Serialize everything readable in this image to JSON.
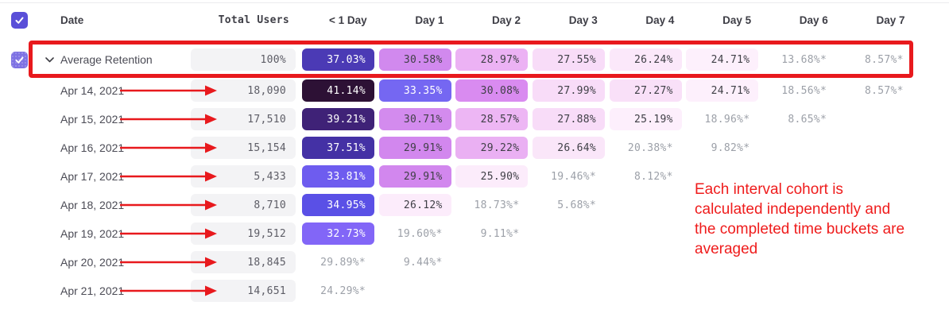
{
  "table": {
    "columns": [
      "Date",
      "Total Users",
      "< 1 Day",
      "Day 1",
      "Day 2",
      "Day 3",
      "Day 4",
      "Day 5",
      "Day 6",
      "Day 7"
    ],
    "rows": [
      {
        "label": "Average Retention",
        "kind": "average",
        "checked": true,
        "expanded": true,
        "total": "100%",
        "cells": [
          {
            "v": "37.03%",
            "bg": "#4b3ab5",
            "fg": "#ffffff"
          },
          {
            "v": "30.58%",
            "bg": "#d189ee",
            "fg": "#3f3f46"
          },
          {
            "v": "28.97%",
            "bg": "#ecb2f4",
            "fg": "#3f3f46"
          },
          {
            "v": "27.55%",
            "bg": "#f8dcf8",
            "fg": "#3f3f46"
          },
          {
            "v": "26.24%",
            "bg": "#fbe8fa",
            "fg": "#3f3f46"
          },
          {
            "v": "24.71%",
            "bg": "#fdf0fc",
            "fg": "#3f3f46"
          },
          {
            "v": "13.68%*"
          },
          {
            "v": "8.57%*"
          }
        ]
      },
      {
        "label": "Apr 14, 2021",
        "total": "18,090",
        "cells": [
          {
            "v": "41.14%",
            "bg": "#2d1135",
            "fg": "#ffffff"
          },
          {
            "v": "33.35%",
            "bg": "#7567f2",
            "fg": "#ffffff"
          },
          {
            "v": "30.08%",
            "bg": "#d98bf0",
            "fg": "#3f3f46"
          },
          {
            "v": "27.99%",
            "bg": "#f8dcf8",
            "fg": "#3f3f46"
          },
          {
            "v": "27.27%",
            "bg": "#f9e0f8",
            "fg": "#3f3f46"
          },
          {
            "v": "24.71%",
            "bg": "#fdf0fc",
            "fg": "#3f3f46"
          },
          {
            "v": "18.56%*"
          },
          {
            "v": "8.57%*"
          }
        ]
      },
      {
        "label": "Apr 15, 2021",
        "total": "17,510",
        "cells": [
          {
            "v": "39.21%",
            "bg": "#3f2277",
            "fg": "#ffffff"
          },
          {
            "v": "30.71%",
            "bg": "#d38bee",
            "fg": "#3f3f46"
          },
          {
            "v": "28.57%",
            "bg": "#edb6f4",
            "fg": "#3f3f46"
          },
          {
            "v": "27.88%",
            "bg": "#f8dcf8",
            "fg": "#3f3f46"
          },
          {
            "v": "25.19%",
            "bg": "#fdeffc",
            "fg": "#3f3f46"
          },
          {
            "v": "18.96%*"
          },
          {
            "v": "8.65%*"
          }
        ]
      },
      {
        "label": "Apr 16, 2021",
        "total": "15,154",
        "cells": [
          {
            "v": "37.51%",
            "bg": "#4431a5",
            "fg": "#ffffff"
          },
          {
            "v": "29.91%",
            "bg": "#d287ee",
            "fg": "#3f3f46"
          },
          {
            "v": "29.22%",
            "bg": "#eab0f3",
            "fg": "#3f3f46"
          },
          {
            "v": "26.64%",
            "bg": "#fae6f9",
            "fg": "#3f3f46"
          },
          {
            "v": "20.38%*"
          },
          {
            "v": "9.82%*"
          }
        ]
      },
      {
        "label": "Apr 17, 2021",
        "total": "5,433",
        "cells": [
          {
            "v": "33.81%",
            "bg": "#6e5cef",
            "fg": "#ffffff"
          },
          {
            "v": "29.91%",
            "bg": "#d287ee",
            "fg": "#3f3f46"
          },
          {
            "v": "25.90%",
            "bg": "#fcecfb",
            "fg": "#3f3f46"
          },
          {
            "v": "19.46%*"
          },
          {
            "v": "8.12%*"
          }
        ]
      },
      {
        "label": "Apr 18, 2021",
        "total": "8,710",
        "cells": [
          {
            "v": "34.95%",
            "bg": "#5a50e6",
            "fg": "#ffffff"
          },
          {
            "v": "26.12%",
            "bg": "#fcecfb",
            "fg": "#3f3f46"
          },
          {
            "v": "18.73%*"
          },
          {
            "v": "5.68%*"
          }
        ]
      },
      {
        "label": "Apr 19, 2021",
        "total": "19,512",
        "cells": [
          {
            "v": "32.73%",
            "bg": "#8266f7",
            "fg": "#ffffff"
          },
          {
            "v": "19.60%*"
          },
          {
            "v": "9.11%*"
          }
        ]
      },
      {
        "label": "Apr 20, 2021",
        "total": "18,845",
        "cells": [
          {
            "v": "29.89%*"
          },
          {
            "v": "9.44%*"
          }
        ]
      },
      {
        "label": "Apr 21, 2021",
        "total": "14,651",
        "cells": [
          {
            "v": "24.29%*"
          }
        ]
      }
    ]
  },
  "annotations": {
    "accent_color": "#e8191d",
    "highlighted_row": "Average Retention",
    "arrow_target_column": "Total Users",
    "note_lines": [
      "Each interval cohort is",
      "calculated independently and",
      "the completed time buckets are",
      "averaged"
    ]
  },
  "icons": {
    "checkbox_check": "checkmark-icon",
    "row_expand": "chevron-down-icon"
  },
  "colors": {
    "checkbox_bg": "#5a4fd8",
    "checkbox_bg_row": "#7e72e3",
    "total_cell_bg": "#f3f3f5",
    "header_text": "#3e3e46",
    "incomplete_value_text": "#9ca0a8"
  }
}
